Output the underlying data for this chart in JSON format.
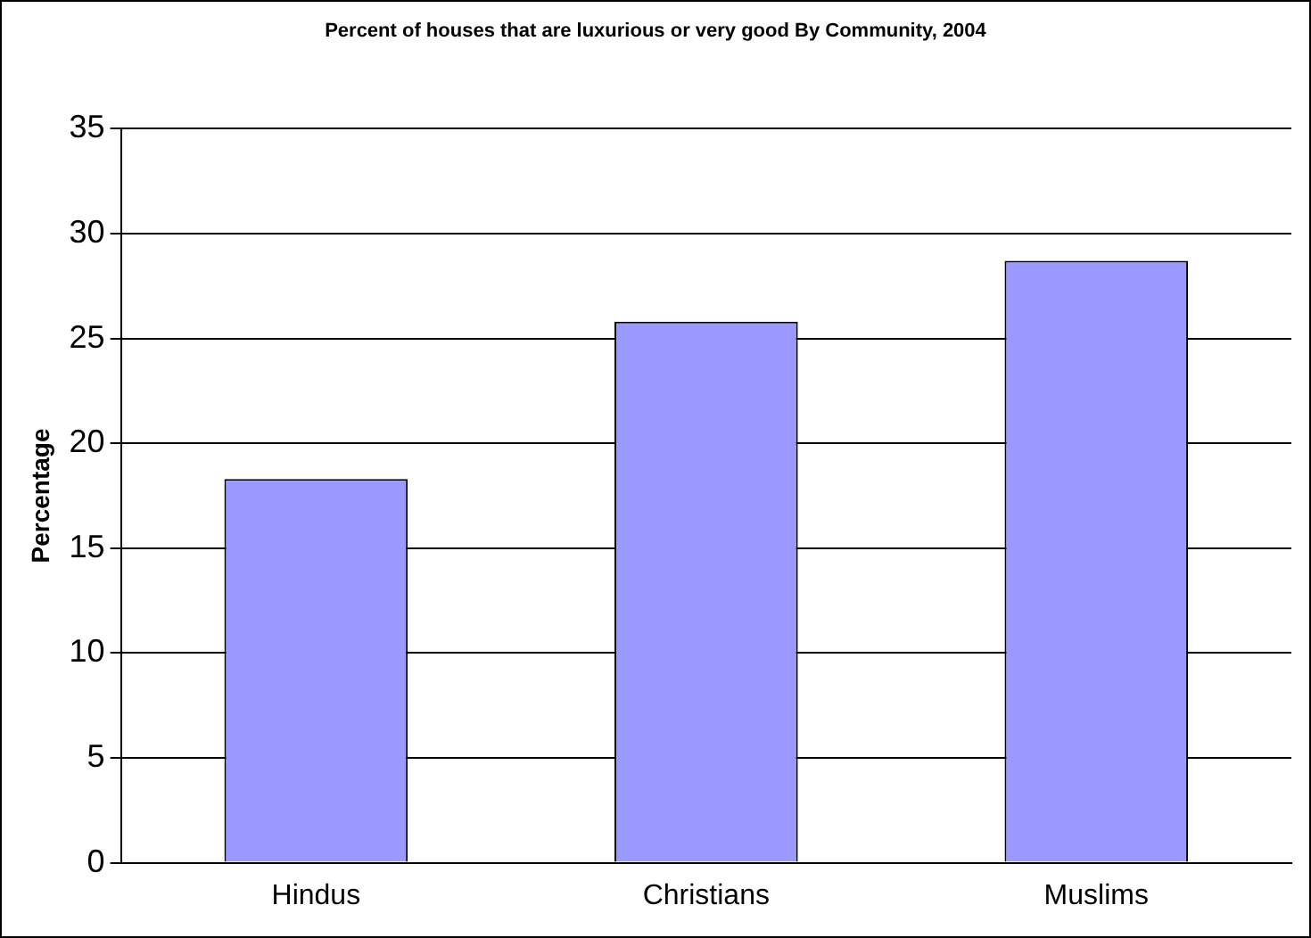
{
  "chart_data": {
    "type": "bar",
    "title": "Percent of houses that are luxurious or very good By Community, 2004",
    "ylabel": "Percentage",
    "categories": [
      "Hindus",
      "Christians",
      "Muslims"
    ],
    "values": [
      18.3,
      25.8,
      28.7
    ],
    "color": "#9999ff",
    "ylim": [
      0,
      35
    ],
    "yticks": [
      0,
      5,
      10,
      15,
      20,
      25,
      30,
      35
    ],
    "grid": "y",
    "legend": false
  }
}
